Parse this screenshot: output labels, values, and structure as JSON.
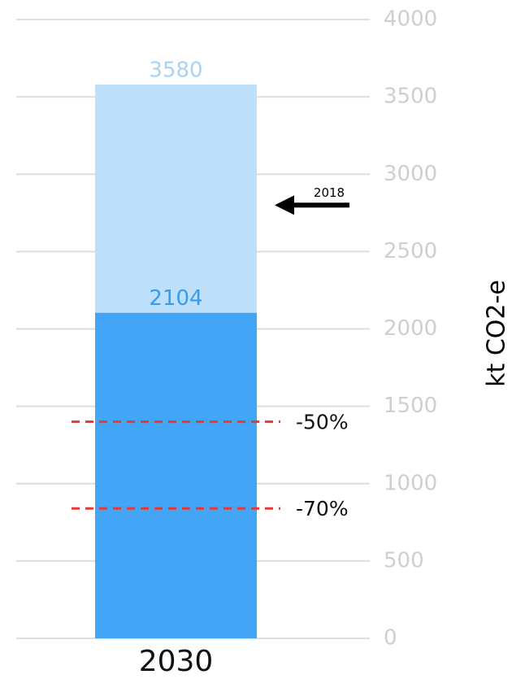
{
  "chart_data": {
    "type": "bar",
    "categories": [
      "2030"
    ],
    "series": [
      {
        "color": "#bfe0fa",
        "label_color": "#a9d3f3",
        "values": [
          3580
        ]
      },
      {
        "color": "#42a5f5",
        "label_color": "#3a9be8",
        "values": [
          2104
        ]
      }
    ],
    "ylabel": "kt CO2-e",
    "ylim": [
      0,
      4000
    ],
    "yticks": [
      0,
      500,
      1000,
      1500,
      2000,
      2500,
      3000,
      3500,
      4000
    ],
    "grid": true,
    "reference_lines": [
      {
        "value": 1400,
        "label": "-50%",
        "color": "#e53935"
      },
      {
        "value": 840,
        "label": "-70%",
        "color": "#e53935"
      }
    ],
    "annotations": [
      {
        "value": 2800,
        "label": "2018"
      }
    ]
  }
}
